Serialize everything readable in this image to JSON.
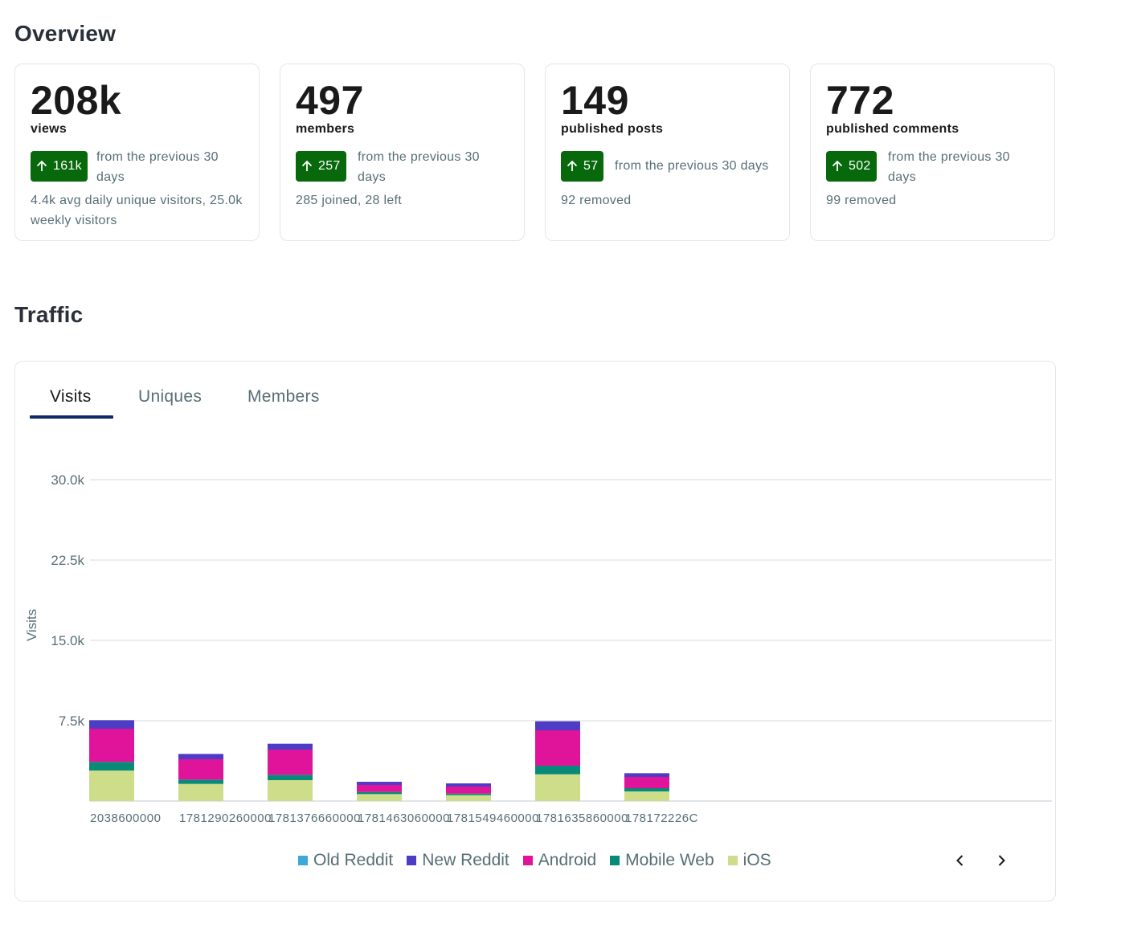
{
  "overview": {
    "title": "Overview",
    "cards": [
      {
        "value": "208k",
        "unit": "views",
        "delta": "161k",
        "delta_text": "from the previous 30 days",
        "sub": "4.4k avg daily unique visitors, 25.0k weekly visitors"
      },
      {
        "value": "497",
        "unit": "members",
        "delta": "257",
        "delta_text": "from the previous 30 days",
        "sub": "285 joined, 28 left"
      },
      {
        "value": "149",
        "unit": "published posts",
        "delta": "57",
        "delta_text": "from the previous 30 days",
        "sub": "92 removed"
      },
      {
        "value": "772",
        "unit": "published comments",
        "delta": "502",
        "delta_text": "from the previous 30 days",
        "sub": "99 removed"
      }
    ]
  },
  "traffic": {
    "title": "Traffic",
    "tabs": [
      {
        "label": "Visits",
        "active": true
      },
      {
        "label": "Uniques",
        "active": false
      },
      {
        "label": "Members",
        "active": false
      }
    ]
  },
  "colors": {
    "badge_green": "#07690c",
    "tab_underline": "#0c2a6a"
  },
  "chart_data": {
    "type": "bar",
    "stacked": true,
    "ylabel": "Visits",
    "yticks": [
      "7.5k",
      "15.0k",
      "22.5k",
      "30.0k"
    ],
    "ylim": [
      0,
      30000
    ],
    "grid": true,
    "legend_position": "bottom",
    "categories": [
      "2038600000",
      "1781290260000",
      "1781376660000",
      "1781463060000",
      "1781549460000",
      "1781635860000",
      "1781722260000"
    ],
    "category_labels": [
      "2038600000",
      "1781290260000",
      "1781376660000",
      "1781463060000",
      "1781549460000",
      "1781635860000",
      "178172226C"
    ],
    "series": [
      {
        "name": "Old Reddit",
        "color": "#3ea8d8",
        "values": [
          0,
          0,
          0,
          0,
          0,
          0,
          0
        ]
      },
      {
        "name": "New Reddit",
        "color": "#4f3cc4",
        "values": [
          800,
          500,
          550,
          300,
          300,
          850,
          350
        ]
      },
      {
        "name": "Android",
        "color": "#e0149a",
        "values": [
          3100,
          1900,
          2350,
          650,
          650,
          3300,
          1050
        ]
      },
      {
        "name": "Mobile Web",
        "color": "#078a77",
        "values": [
          800,
          400,
          500,
          200,
          150,
          800,
          300
        ]
      },
      {
        "name": "iOS",
        "color": "#cedd8a",
        "values": [
          2850,
          1600,
          1950,
          650,
          550,
          2500,
          900
        ]
      }
    ]
  }
}
